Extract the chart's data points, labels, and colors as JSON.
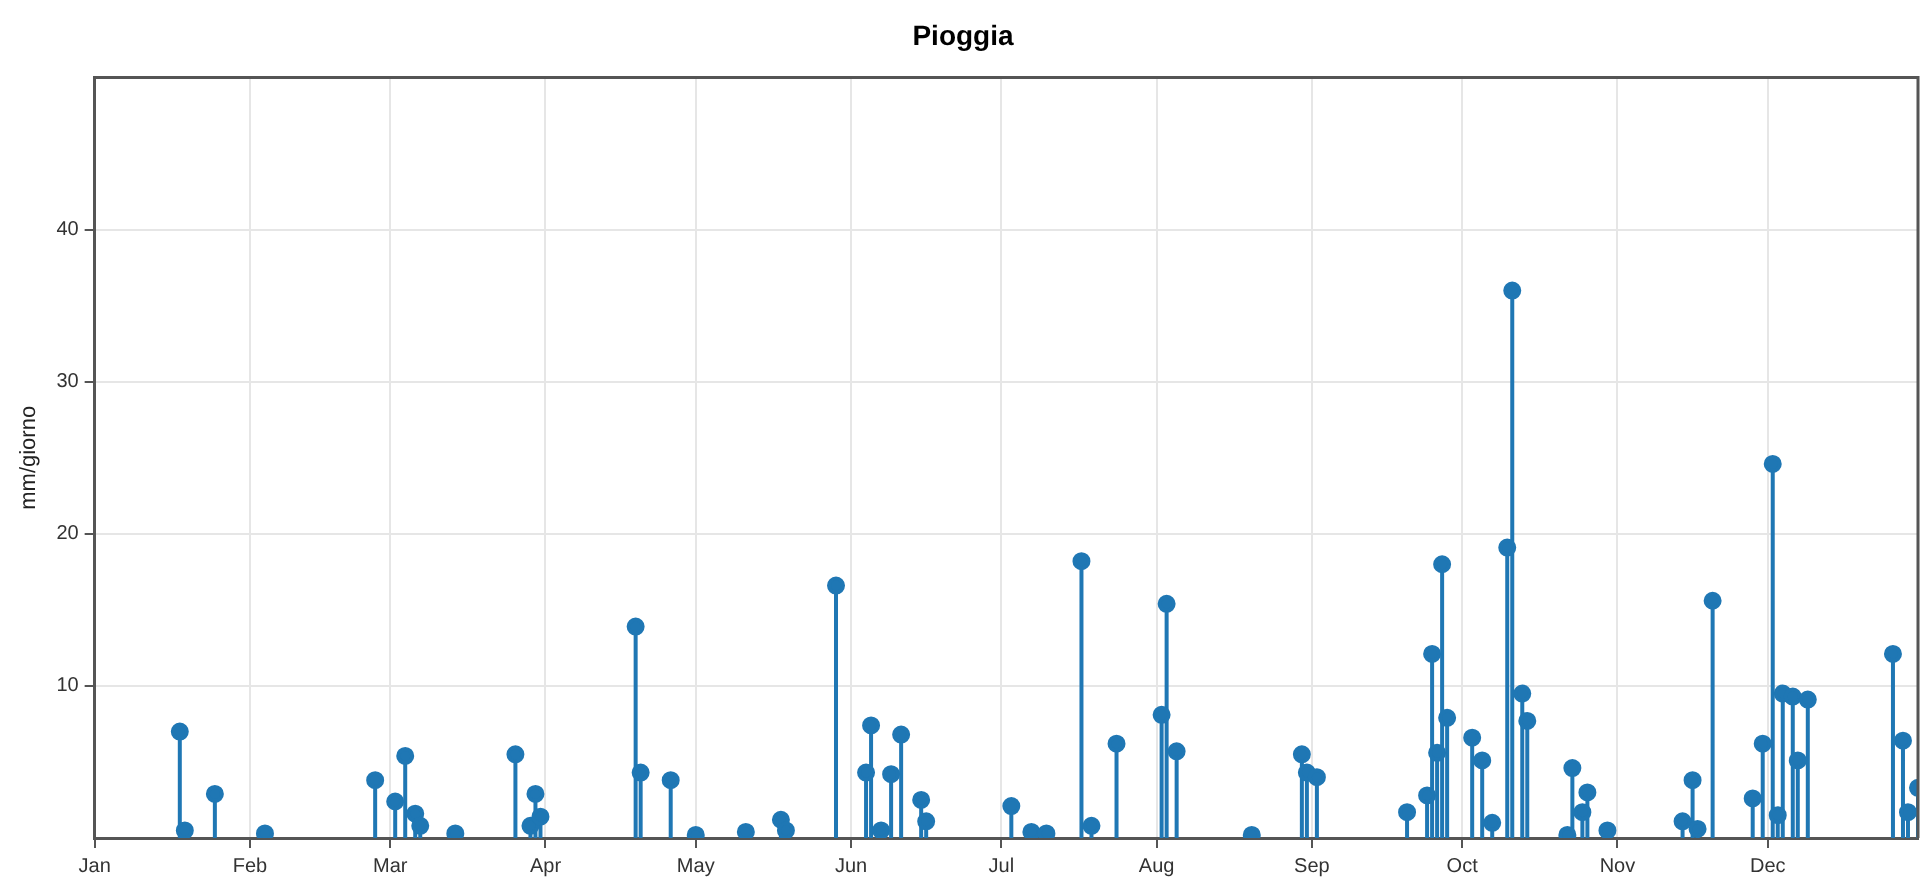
{
  "chart_data": {
    "type": "lollipop",
    "title": "Pioggia",
    "ylabel": "mm/giorno",
    "x": [
      "--01-18",
      "--01-19",
      "--01-25",
      "--02-04",
      "--02-26",
      "--03-02",
      "--03-04",
      "--03-06",
      "--03-07",
      "--03-14",
      "--03-26",
      "--03-29",
      "--03-30",
      "--03-31",
      "--04-19",
      "--04-20",
      "--04-26",
      "--05-01",
      "--05-11",
      "--05-18",
      "--05-19",
      "--05-29",
      "--06-04",
      "--06-05",
      "--06-07",
      "--06-09",
      "--06-11",
      "--06-15",
      "--06-16",
      "--07-03",
      "--07-07",
      "--07-10",
      "--07-17",
      "--07-19",
      "--07-24",
      "--08-02",
      "--08-03",
      "--08-05",
      "--08-20",
      "--08-30",
      "--08-31",
      "--09-02",
      "--09-20",
      "--09-24",
      "--09-25",
      "--09-26",
      "--09-27",
      "--09-28",
      "--10-03",
      "--10-05",
      "--10-07",
      "--10-10",
      "--10-11",
      "--10-13",
      "--10-14",
      "--10-22",
      "--10-23",
      "--10-25",
      "--10-26",
      "--10-30",
      "--11-14",
      "--11-16",
      "--11-17",
      "--11-20",
      "--11-28",
      "--11-30",
      "--12-02",
      "--12-03",
      "--12-04",
      "--12-06",
      "--12-07",
      "--12-09",
      "--12-26",
      "--12-28",
      "--12-29",
      "--12-31"
    ],
    "series": [
      {
        "color": "#1f77b4",
        "values": [
          7.0,
          0.5,
          2.9,
          0.3,
          3.8,
          2.4,
          5.4,
          1.6,
          0.8,
          0.3,
          5.5,
          0.8,
          2.9,
          1.4,
          13.9,
          4.3,
          3.8,
          0.2,
          0.4,
          1.2,
          0.5,
          16.6,
          4.3,
          7.4,
          0.5,
          4.2,
          6.8,
          2.5,
          1.1,
          2.1,
          0.4,
          0.3,
          18.2,
          0.8,
          6.2,
          8.1,
          15.4,
          5.7,
          0.2,
          5.5,
          4.3,
          4.0,
          1.7,
          2.8,
          12.1,
          5.6,
          18.0,
          7.9,
          6.6,
          5.1,
          1.0,
          19.1,
          36.0,
          9.5,
          7.7,
          0.2,
          4.6,
          1.7,
          3.0,
          0.5,
          1.1,
          3.8,
          0.6,
          15.6,
          2.6,
          6.2,
          24.6,
          1.5,
          9.5,
          9.3,
          5.1,
          9.1,
          12.1,
          6.4,
          1.7,
          3.3
        ]
      }
    ],
    "xlim": [
      "--01-01",
      "--12-31"
    ],
    "xticks": [
      {
        "value": "--01-01",
        "label": "Jan"
      },
      {
        "value": "--02-01",
        "label": "Feb"
      },
      {
        "value": "--03-01",
        "label": "Mar"
      },
      {
        "value": "--04-01",
        "label": "Apr"
      },
      {
        "value": "--05-01",
        "label": "May"
      },
      {
        "value": "--06-01",
        "label": "Jun"
      },
      {
        "value": "--07-01",
        "label": "Jul"
      },
      {
        "value": "--08-01",
        "label": "Aug"
      },
      {
        "value": "--09-01",
        "label": "Sep"
      },
      {
        "value": "--10-01",
        "label": "Oct"
      },
      {
        "value": "--11-01",
        "label": "Nov"
      },
      {
        "value": "--12-01",
        "label": "Dec"
      }
    ],
    "ylim": [
      0,
      50
    ],
    "yticks": [
      10,
      20,
      30,
      40
    ],
    "grid": true,
    "marker": "circle",
    "line_style": "solid"
  }
}
